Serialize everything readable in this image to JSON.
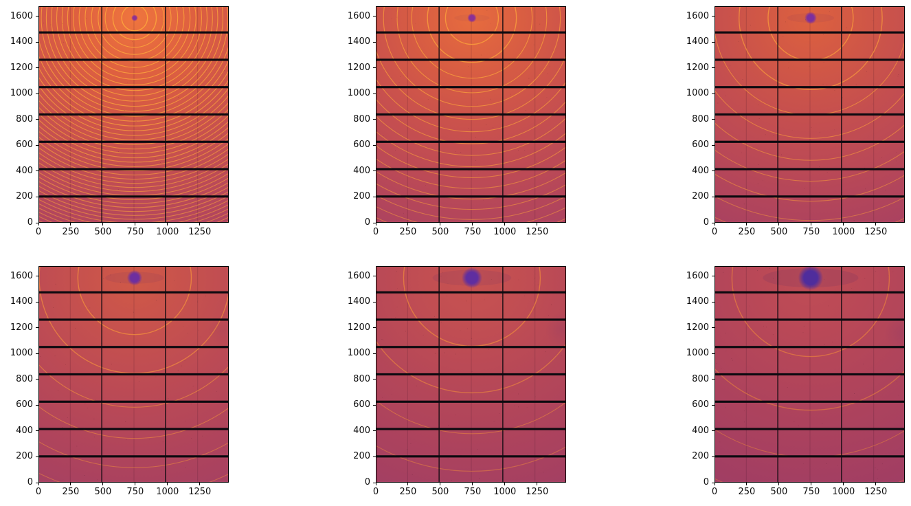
{
  "figure": {
    "background_color": "#ffffff",
    "kind": "matplotlib-style figure, 2 rows x 3 columns of detector images, no titles, no axis labels, no colorbar"
  },
  "chart_data": {
    "type": "heatmap",
    "title": "",
    "xlabel": "",
    "ylabel": "",
    "description": "Six powder-diffraction detector images (Pilatus-2M-like detector with black module gaps) shown as imshow panels with an inferno/magma colormap. Concentric Debye-Scherrer rings are centered on a purple beam-stop spot near the top of each image. From panel 1 to panel 6 the sample-detector distance increases: rings get wider apart, the background gets darker, and the beam spot gets larger.",
    "x_ticks": [
      0,
      250,
      500,
      750,
      1000,
      1250
    ],
    "y_ticks": [
      0,
      200,
      400,
      600,
      800,
      1000,
      1200,
      1400,
      1600
    ],
    "x_range": [
      0,
      1475
    ],
    "y_range": [
      0,
      1679
    ],
    "grid": false,
    "legend": false,
    "beam_center": {
      "x": 745,
      "y": 1588
    },
    "detector": {
      "gap_color": "#0d0a10",
      "gap_y_positions": [
        195,
        407,
        619,
        831,
        1043,
        1255,
        1467
      ],
      "gap_y_thickness": 17,
      "gap_x_positions": [
        487,
        981
      ],
      "gap_x_thickness": 7,
      "module_centers_x": [
        244,
        738,
        1232
      ],
      "chip_line_alpha": 0.22
    },
    "rings_model": {
      "base_radius": 100,
      "exponent": 0.75
    },
    "panels": [
      {
        "row": 0,
        "col": 0,
        "ring_scale": 1.0,
        "ring_color": "#fba33c",
        "ring_alpha": 0.95,
        "bg_stops": [
          "#ef753e",
          "#de6040",
          "#cd544a",
          "#bb4a57",
          "#ad4360"
        ],
        "beam_spot": {
          "radius": 15,
          "color": "#8d3192"
        },
        "streak_alpha": 0.0,
        "artifact": null,
        "seed": 11
      },
      {
        "row": 0,
        "col": 1,
        "ring_scale": 2.05,
        "ring_color": "#f99e3c",
        "ring_alpha": 0.9,
        "bg_stops": [
          "#e76c3e",
          "#d75c43",
          "#c8504e",
          "#b84858",
          "#ab4260"
        ],
        "beam_spot": {
          "radius": 21,
          "color": "#8a3096"
        },
        "streak_alpha": 0.05,
        "artifact": null,
        "seed": 22
      },
      {
        "row": 0,
        "col": 2,
        "ring_scale": 3.3,
        "ring_color": "#f7993c",
        "ring_alpha": 0.85,
        "bg_stops": [
          "#dd613f",
          "#cf5647",
          "#c24d51",
          "#b4465a",
          "#a84161"
        ],
        "beam_spot": {
          "radius": 28,
          "color": "#7c2f9e"
        },
        "streak_alpha": 0.07,
        "artifact": null,
        "seed": 33
      },
      {
        "row": 1,
        "col": 0,
        "ring_scale": 4.4,
        "ring_color": "#f5943c",
        "ring_alpha": 0.8,
        "bg_stops": [
          "#d05947",
          "#c6514e",
          "#bb4a55",
          "#af445c",
          "#a54062"
        ],
        "beam_spot": {
          "radius": 35,
          "color": "#6e2f9f"
        },
        "streak_alpha": 0.09,
        "artifact": {
          "x": 1430,
          "y": 1180,
          "r": 120,
          "alpha": 0.08
        },
        "seed": 44
      },
      {
        "row": 1,
        "col": 1,
        "ring_scale": 5.3,
        "ring_color": "#f28f3b",
        "ring_alpha": 0.75,
        "bg_stops": [
          "#c85350",
          "#c04d53",
          "#b54758",
          "#ab425e",
          "#a23f63"
        ],
        "beam_spot": {
          "radius": 47,
          "color": "#5f2ea0"
        },
        "streak_alpha": 0.11,
        "artifact": {
          "x": 1440,
          "y": 1190,
          "r": 130,
          "alpha": 0.12
        },
        "seed": 55
      },
      {
        "row": 1,
        "col": 2,
        "ring_scale": 6.1,
        "ring_color": "#f08a3a",
        "ring_alpha": 0.72,
        "bg_stops": [
          "#c04d55",
          "#b94857",
          "#b0445b",
          "#a74060",
          "#9f3d64"
        ],
        "beam_spot": {
          "radius": 57,
          "color": "#4f2d9c"
        },
        "streak_alpha": 0.13,
        "artifact": {
          "x": 1455,
          "y": 1160,
          "r": 140,
          "alpha": 0.13
        },
        "seed": 66
      }
    ]
  }
}
